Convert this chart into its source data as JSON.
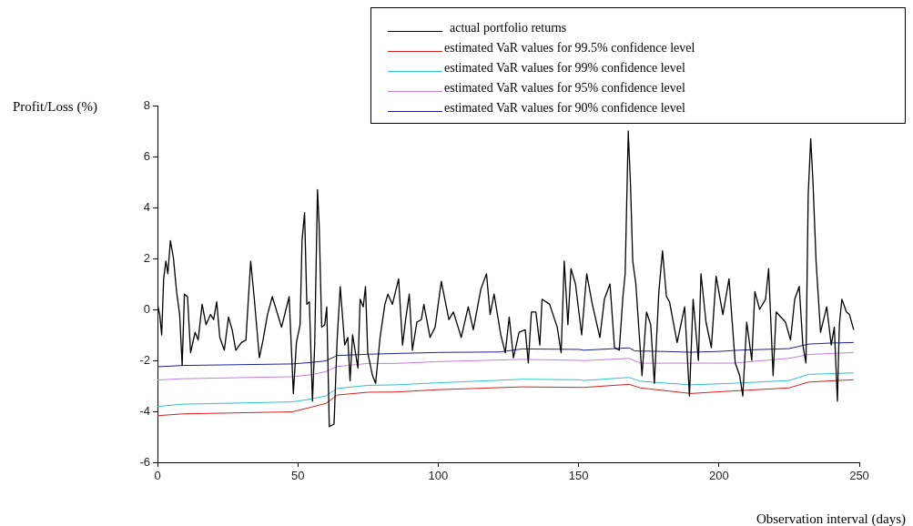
{
  "chart_data": {
    "type": "line",
    "xlabel": "Observation interval (days)",
    "ylabel": "Profit/Loss (%)",
    "xlim": [
      0,
      250
    ],
    "xticks": [
      0,
      50,
      100,
      150,
      200,
      250
    ],
    "ylim": [
      -6,
      8
    ],
    "yticks": [
      -6,
      -4,
      -2,
      0,
      2,
      4,
      6,
      8
    ],
    "legend": "top right",
    "marker": "none",
    "line_style": "solid",
    "series": [
      {
        "name": "actual portfolio returns",
        "color": "#000000",
        "x": [
          0,
          0.8,
          1.5,
          2.2,
          3,
          3.7,
          4.6,
          5.7,
          6.8,
          7.9,
          8.8,
          9.6,
          10.7,
          11.8,
          13.4,
          14.5,
          15.9,
          17.3,
          18.9,
          20,
          21.1,
          22.2,
          23.8,
          25.3,
          26.6,
          27.9,
          29.9,
          31.5,
          33.2,
          34.5,
          36.3,
          37.6,
          39.2,
          40.9,
          44.2,
          46.9,
          48.4,
          49.5,
          50.8,
          51.5,
          52.4,
          53.2,
          54.1,
          55.2,
          56,
          57,
          57.6,
          58.5,
          59.6,
          60.3,
          61.2,
          62.9,
          64,
          65.1,
          66.7,
          67.8,
          68.6,
          69.5,
          71.4,
          72.2,
          73.3,
          74.1,
          74.9,
          76.6,
          77.7,
          79.3,
          81,
          82.1,
          83.7,
          85.9,
          87.3,
          88.4,
          89.7,
          90.8,
          92.4,
          94,
          94.9,
          97.1,
          98.9,
          101.1,
          103.8,
          105.4,
          107.1,
          108.2,
          110.7,
          112.5,
          115.2,
          117.2,
          118.5,
          119.9,
          122.3,
          123.9,
          125.3,
          126.8,
          128.8,
          131,
          132.1,
          133.2,
          134.8,
          136.2,
          137,
          139.7,
          142.4,
          143.8,
          144.9,
          146.2,
          147.3,
          148.9,
          151.1,
          152.9,
          154.9,
          157.6,
          159.2,
          161.2,
          162.8,
          164.5,
          165.8,
          166.6,
          167.7,
          168.5,
          169.3,
          170.4,
          172.6,
          174.2,
          175.7,
          177,
          178.6,
          179.9,
          181.3,
          182.4,
          185.1,
          187.8,
          189.5,
          190.8,
          192.7,
          193.6,
          195.4,
          197.3,
          199,
          201.4,
          203.6,
          205.8,
          207.4,
          208.5,
          209.9,
          211.7,
          212.8,
          214.5,
          216.6,
          217.7,
          219.3,
          220.4,
          223.7,
          225.5,
          227,
          228.6,
          229.9,
          231,
          231.8,
          232.7,
          233.5,
          234.6,
          236.2,
          238.4,
          240,
          241.1,
          242.2,
          242.9,
          243.8,
          245.4,
          246.5,
          248
        ],
        "values": [
          0.2,
          -0.2,
          -1.0,
          1.2,
          1.9,
          1.4,
          2.7,
          2.0,
          0.7,
          -0.2,
          -2.2,
          0.6,
          0.5,
          -1.7,
          -0.9,
          -1.2,
          0.2,
          -0.6,
          -0.2,
          -0.4,
          0.3,
          -1.1,
          -1.6,
          -0.3,
          -0.8,
          -1.6,
          -1.3,
          -1.2,
          1.9,
          0.4,
          -1.9,
          -1.2,
          -0.2,
          0.5,
          -0.7,
          0.5,
          -3.3,
          -1.3,
          -0.6,
          2.7,
          3.8,
          0.2,
          0.3,
          -3.6,
          -1.4,
          4.7,
          3.3,
          -0.7,
          -0.6,
          0.1,
          -4.6,
          -4.5,
          -1.2,
          0.9,
          -1.4,
          -1.1,
          -2.8,
          -1.0,
          -2.3,
          0.4,
          0.1,
          0.9,
          -1.7,
          -2.6,
          -2.9,
          -1.1,
          0.2,
          0.6,
          0.2,
          1.2,
          -1.4,
          -0.4,
          0.6,
          -1.6,
          -0.5,
          -0.4,
          0.2,
          -1.1,
          -0.7,
          1.1,
          -0.4,
          -0.1,
          -0.7,
          -1.1,
          0.1,
          -0.8,
          0.8,
          1.4,
          -0.2,
          0.6,
          -1.0,
          -1.7,
          -0.3,
          -1.9,
          -0.9,
          -0.8,
          -2.1,
          -0.1,
          -0.1,
          -1.4,
          0.4,
          0.2,
          -0.7,
          -1.7,
          1.9,
          -0.6,
          1.6,
          1.0,
          -1.0,
          1.4,
          0.2,
          -1.1,
          0.4,
          1.0,
          -1.5,
          -1.6,
          0.5,
          1.4,
          7.0,
          4.9,
          1.9,
          1.0,
          -2.6,
          -0.1,
          -0.6,
          -2.9,
          0.7,
          2.3,
          0.5,
          0.3,
          -1.3,
          0.1,
          -3.4,
          0.4,
          -2.0,
          1.4,
          -0.5,
          -1.5,
          1.3,
          -0.2,
          1.2,
          -2.1,
          -2.6,
          -3.4,
          -0.5,
          -2.0,
          0.7,
          0.0,
          0.4,
          1.6,
          -2.6,
          -0.1,
          -0.5,
          -1.2,
          0.4,
          0.9,
          -1.4,
          -2.1,
          4.5,
          6.7,
          5.0,
          1.9,
          -0.9,
          0.1,
          -1.4,
          -0.7,
          -3.6,
          -0.6,
          0.4,
          -0.1,
          -0.2,
          -0.8
        ]
      },
      {
        "name": "estimated VaR values for 99.5% confidence level",
        "color": "#d42020",
        "x": [
          0,
          9,
          48,
          55,
          60,
          64,
          75,
          85,
          100,
          130,
          150,
          152,
          168,
          172,
          190,
          205,
          225,
          232,
          248
        ],
        "values": [
          -4.17,
          -4.1,
          -4.02,
          -3.83,
          -3.69,
          -3.36,
          -3.25,
          -3.24,
          -3.15,
          -3.04,
          -3.06,
          -3.06,
          -2.94,
          -3.08,
          -3.3,
          -3.2,
          -3.08,
          -2.85,
          -2.76
        ]
      },
      {
        "name": "estimated VaR values for 99% confidence level",
        "color": "#2ec4c4",
        "x": [
          0,
          9,
          48,
          55,
          60,
          64,
          75,
          85,
          100,
          130,
          150,
          152,
          168,
          172,
          190,
          205,
          225,
          232,
          248
        ],
        "values": [
          -3.81,
          -3.72,
          -3.63,
          -3.51,
          -3.39,
          -3.1,
          -2.98,
          -2.96,
          -2.88,
          -2.74,
          -2.76,
          -2.79,
          -2.67,
          -2.82,
          -2.96,
          -2.9,
          -2.79,
          -2.55,
          -2.49
        ]
      },
      {
        "name": "estimated VaR values for 95% confidence level",
        "color": "#c080e0",
        "x": [
          0,
          9,
          48,
          55,
          60,
          64,
          75,
          85,
          100,
          130,
          150,
          152,
          168,
          172,
          190,
          205,
          225,
          232,
          248
        ],
        "values": [
          -2.77,
          -2.72,
          -2.64,
          -2.56,
          -2.44,
          -2.24,
          -2.12,
          -2.12,
          -2.05,
          -1.96,
          -2.0,
          -2.01,
          -1.92,
          -2.11,
          -2.11,
          -2.11,
          -1.92,
          -1.77,
          -1.69
        ]
      },
      {
        "name": "estimated VaR values for 90% confidence level",
        "color": "#202090",
        "x": [
          0,
          9,
          48,
          55,
          60,
          64,
          75,
          85,
          100,
          122,
          130,
          150,
          152,
          168,
          170,
          180,
          190,
          200,
          207,
          225,
          232,
          240,
          248
        ],
        "values": [
          -2.25,
          -2.2,
          -2.14,
          -2.08,
          -2.02,
          -1.81,
          -1.76,
          -1.73,
          -1.69,
          -1.67,
          -1.55,
          -1.57,
          -1.6,
          -1.51,
          -1.63,
          -1.65,
          -1.68,
          -1.65,
          -1.6,
          -1.54,
          -1.36,
          -1.32,
          -1.3
        ]
      }
    ]
  }
}
